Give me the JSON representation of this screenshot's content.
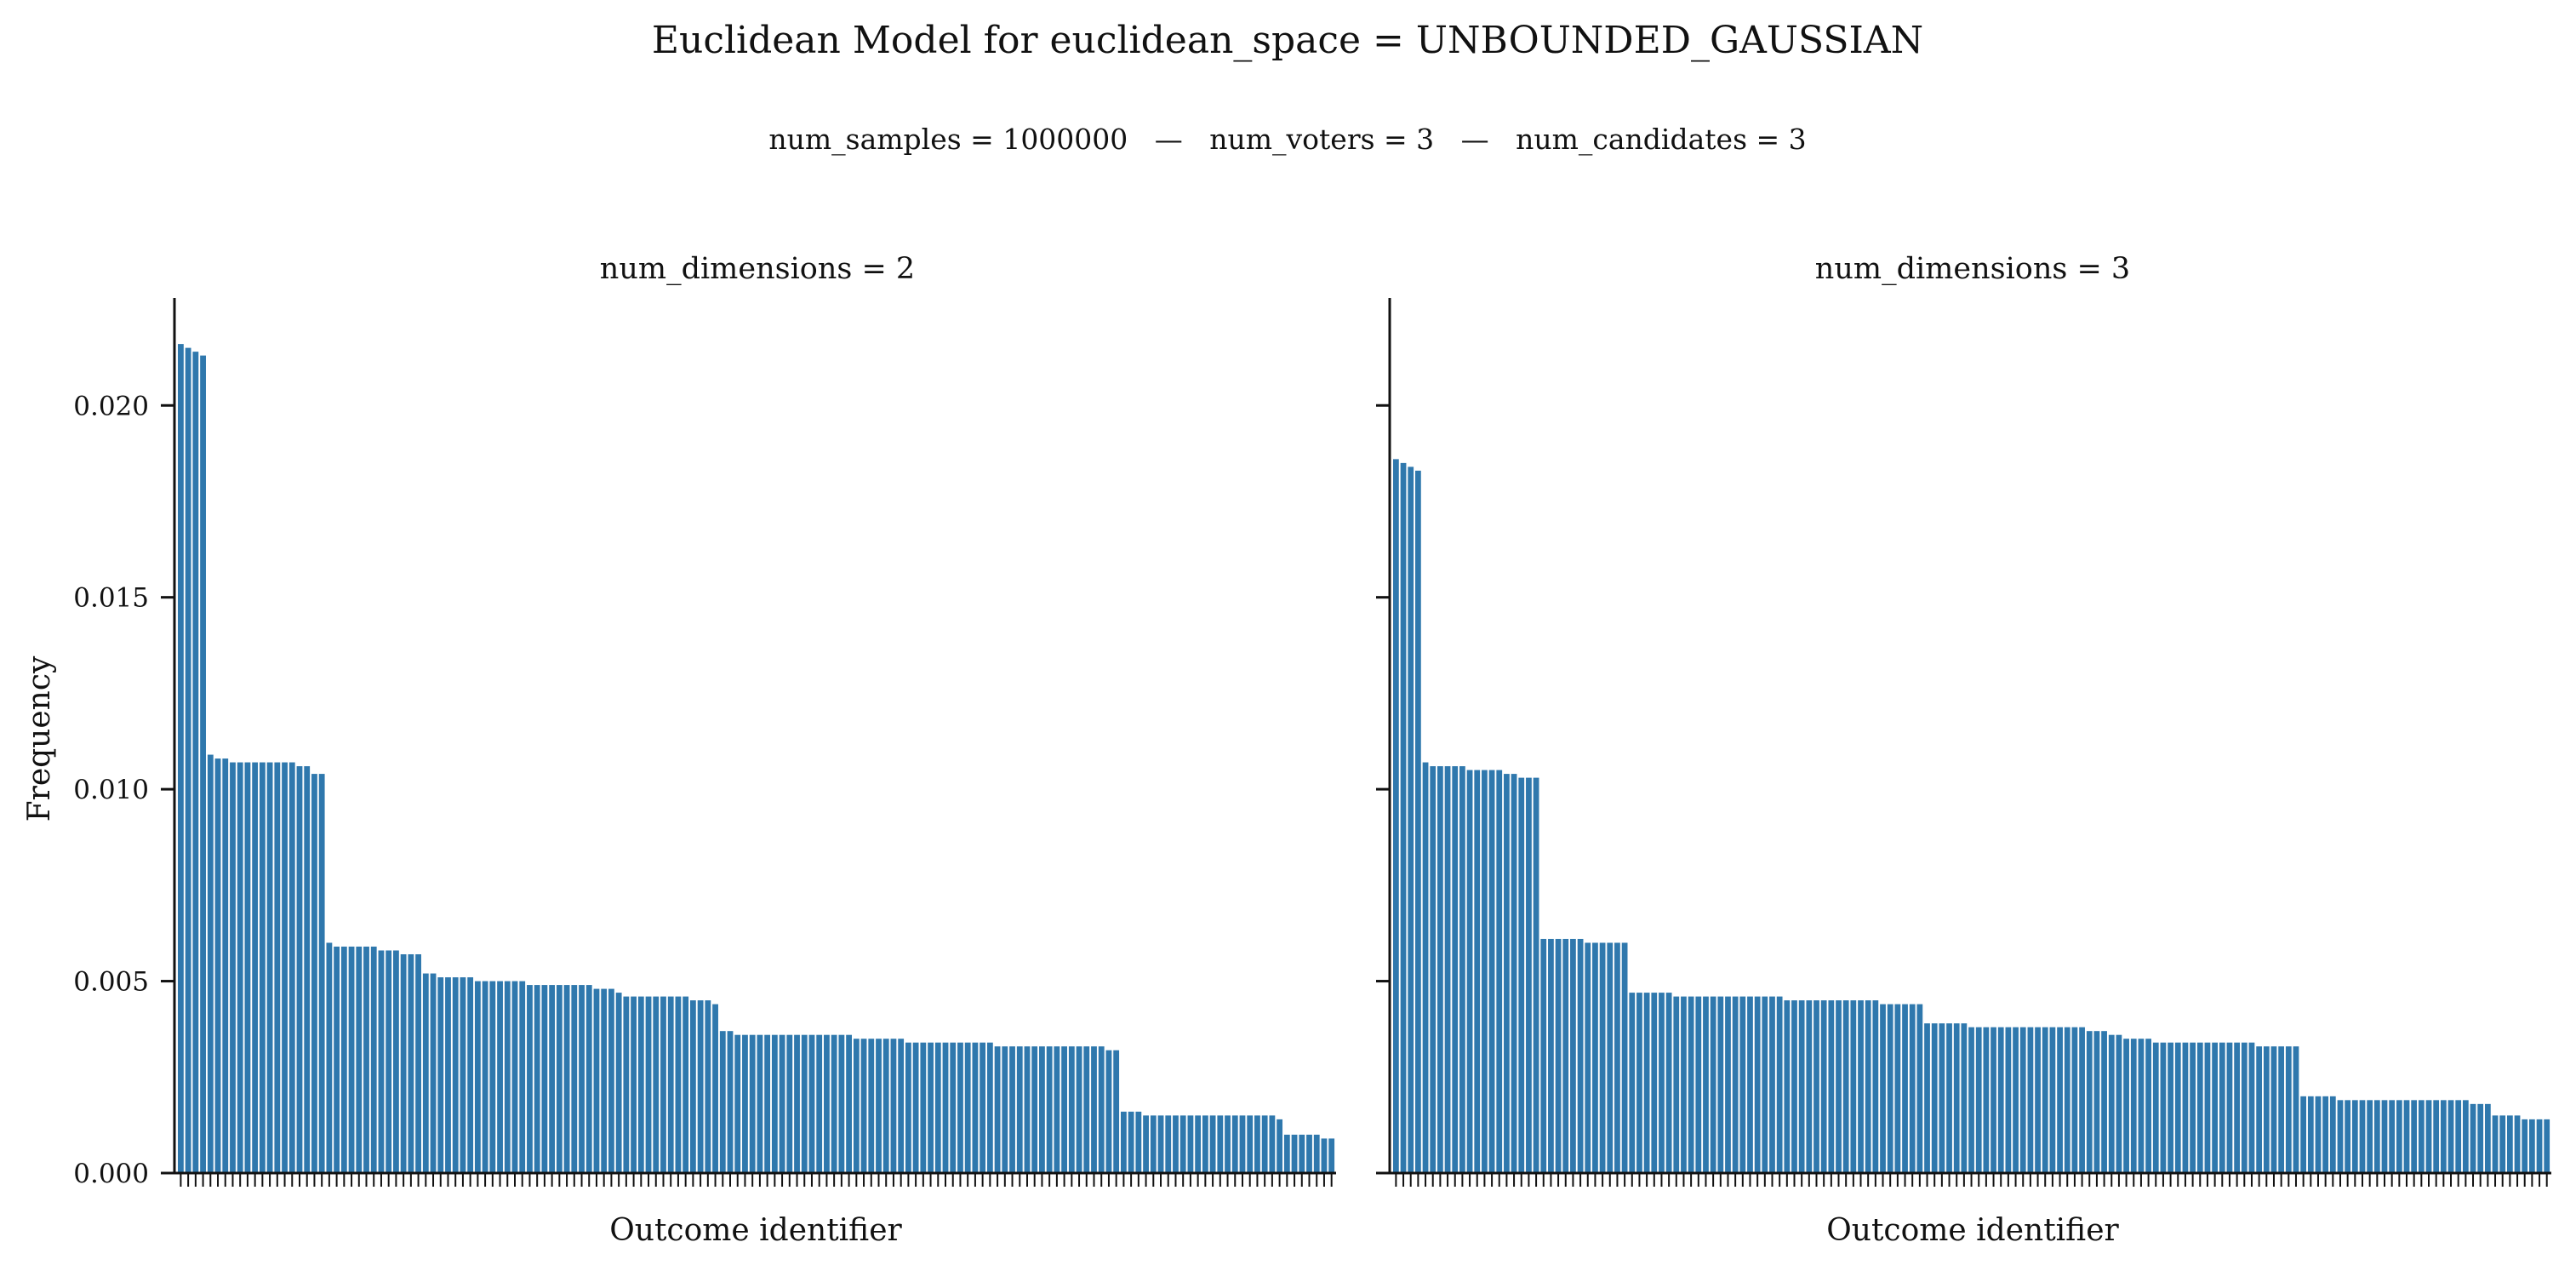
{
  "figure": {
    "title": "Euclidean Model for euclidean_space = UNBOUNDED_GAUSSIAN",
    "subtitle": "num_samples = 1000000   —   num_voters = 3   —   num_candidates = 3"
  },
  "colors": {
    "bar": "#2f78ad",
    "axis": "#111111"
  },
  "chart_data": [
    {
      "type": "bar",
      "title": "num_dimensions = 2",
      "xlabel": "Outcome identifier",
      "ylabel": "Frequency",
      "ylim": [
        0,
        0.0228
      ],
      "yticks": [
        "0.000",
        "0.005",
        "0.010",
        "0.015",
        "0.020"
      ],
      "yticks_values": [
        0,
        0.005,
        0.01,
        0.015,
        0.02
      ],
      "num_bars": 156,
      "grid": false,
      "values": [
        0.0216,
        0.0215,
        0.0214,
        0.0213,
        0.0109,
        0.0108,
        0.0108,
        0.0107,
        0.0107,
        0.0107,
        0.0107,
        0.0107,
        0.0107,
        0.0107,
        0.0107,
        0.0107,
        0.0106,
        0.0106,
        0.0104,
        0.0104,
        0.006,
        0.0059,
        0.0059,
        0.0059,
        0.0059,
        0.0059,
        0.0059,
        0.0058,
        0.0058,
        0.0058,
        0.0057,
        0.0057,
        0.0057,
        0.0052,
        0.0052,
        0.0051,
        0.0051,
        0.0051,
        0.0051,
        0.0051,
        0.005,
        0.005,
        0.005,
        0.005,
        0.005,
        0.005,
        0.005,
        0.0049,
        0.0049,
        0.0049,
        0.0049,
        0.0049,
        0.0049,
        0.0049,
        0.0049,
        0.0049,
        0.0048,
        0.0048,
        0.0048,
        0.0047,
        0.0046,
        0.0046,
        0.0046,
        0.0046,
        0.0046,
        0.0046,
        0.0046,
        0.0046,
        0.0046,
        0.0045,
        0.0045,
        0.0045,
        0.0044,
        0.0037,
        0.0037,
        0.0036,
        0.0036,
        0.0036,
        0.0036,
        0.0036,
        0.0036,
        0.0036,
        0.0036,
        0.0036,
        0.0036,
        0.0036,
        0.0036,
        0.0036,
        0.0036,
        0.0036,
        0.0036,
        0.0035,
        0.0035,
        0.0035,
        0.0035,
        0.0035,
        0.0035,
        0.0035,
        0.0034,
        0.0034,
        0.0034,
        0.0034,
        0.0034,
        0.0034,
        0.0034,
        0.0034,
        0.0034,
        0.0034,
        0.0034,
        0.0034,
        0.0033,
        0.0033,
        0.0033,
        0.0033,
        0.0033,
        0.0033,
        0.0033,
        0.0033,
        0.0033,
        0.0033,
        0.0033,
        0.0033,
        0.0033,
        0.0033,
        0.0033,
        0.0032,
        0.0032,
        0.0016,
        0.0016,
        0.0016,
        0.0015,
        0.0015,
        0.0015,
        0.0015,
        0.0015,
        0.0015,
        0.0015,
        0.0015,
        0.0015,
        0.0015,
        0.0015,
        0.0015,
        0.0015,
        0.0015,
        0.0015,
        0.0015,
        0.0015,
        0.0015,
        0.0014,
        0.001,
        0.001,
        0.001,
        0.001,
        0.001,
        0.0009,
        0.0009
      ]
    },
    {
      "type": "bar",
      "title": "num_dimensions = 3",
      "xlabel": "Outcome identifier",
      "ylabel": "",
      "ylim": [
        0,
        0.0228
      ],
      "yticks": [],
      "yticks_values": [
        0,
        0.005,
        0.01,
        0.015,
        0.02
      ],
      "num_bars": 156,
      "grid": false,
      "values": [
        0.0186,
        0.0185,
        0.0184,
        0.0183,
        0.0107,
        0.0106,
        0.0106,
        0.0106,
        0.0106,
        0.0106,
        0.0105,
        0.0105,
        0.0105,
        0.0105,
        0.0105,
        0.0104,
        0.0104,
        0.0103,
        0.0103,
        0.0103,
        0.0061,
        0.0061,
        0.0061,
        0.0061,
        0.0061,
        0.0061,
        0.006,
        0.006,
        0.006,
        0.006,
        0.006,
        0.006,
        0.0047,
        0.0047,
        0.0047,
        0.0047,
        0.0047,
        0.0047,
        0.0046,
        0.0046,
        0.0046,
        0.0046,
        0.0046,
        0.0046,
        0.0046,
        0.0046,
        0.0046,
        0.0046,
        0.0046,
        0.0046,
        0.0046,
        0.0046,
        0.0046,
        0.0045,
        0.0045,
        0.0045,
        0.0045,
        0.0045,
        0.0045,
        0.0045,
        0.0045,
        0.0045,
        0.0045,
        0.0045,
        0.0045,
        0.0045,
        0.0044,
        0.0044,
        0.0044,
        0.0044,
        0.0044,
        0.0044,
        0.0039,
        0.0039,
        0.0039,
        0.0039,
        0.0039,
        0.0039,
        0.0038,
        0.0038,
        0.0038,
        0.0038,
        0.0038,
        0.0038,
        0.0038,
        0.0038,
        0.0038,
        0.0038,
        0.0038,
        0.0038,
        0.0038,
        0.0038,
        0.0038,
        0.0038,
        0.0037,
        0.0037,
        0.0037,
        0.0036,
        0.0036,
        0.0035,
        0.0035,
        0.0035,
        0.0035,
        0.0034,
        0.0034,
        0.0034,
        0.0034,
        0.0034,
        0.0034,
        0.0034,
        0.0034,
        0.0034,
        0.0034,
        0.0034,
        0.0034,
        0.0034,
        0.0034,
        0.0033,
        0.0033,
        0.0033,
        0.0033,
        0.0033,
        0.0033,
        0.002,
        0.002,
        0.002,
        0.002,
        0.002,
        0.0019,
        0.0019,
        0.0019,
        0.0019,
        0.0019,
        0.0019,
        0.0019,
        0.0019,
        0.0019,
        0.0019,
        0.0019,
        0.0019,
        0.0019,
        0.0019,
        0.0019,
        0.0019,
        0.0019,
        0.0019,
        0.0018,
        0.0018,
        0.0018,
        0.0015,
        0.0015,
        0.0015,
        0.0015,
        0.0014,
        0.0014,
        0.0014,
        0.0014
      ]
    }
  ]
}
